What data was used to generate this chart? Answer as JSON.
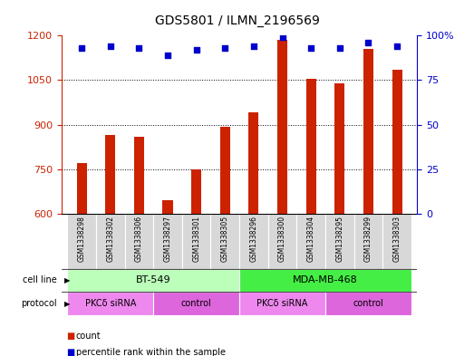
{
  "title": "GDS5801 / ILMN_2196569",
  "samples": [
    "GSM1338298",
    "GSM1338302",
    "GSM1338306",
    "GSM1338297",
    "GSM1338301",
    "GSM1338305",
    "GSM1338296",
    "GSM1338300",
    "GSM1338304",
    "GSM1338295",
    "GSM1338299",
    "GSM1338303"
  ],
  "counts": [
    770,
    865,
    860,
    645,
    748,
    893,
    940,
    1185,
    1053,
    1040,
    1155,
    1085
  ],
  "percentile_ranks": [
    93,
    94,
    93,
    89,
    92,
    93,
    94,
    99,
    93,
    93,
    96,
    94
  ],
  "ylim_left": [
    600,
    1200
  ],
  "ylim_right": [
    0,
    100
  ],
  "yticks_left": [
    600,
    750,
    900,
    1050,
    1200
  ],
  "yticks_right": [
    0,
    25,
    50,
    75,
    100
  ],
  "bar_color": "#cc2200",
  "dot_color": "#0000cc",
  "cell_line_labels": [
    "BT-549",
    "MDA-MB-468"
  ],
  "cell_line_ranges": [
    [
      0,
      6
    ],
    [
      6,
      12
    ]
  ],
  "cell_line_colors": [
    "#bbffbb",
    "#44ee44"
  ],
  "protocol_labels": [
    "PKCδ siRNA",
    "control",
    "PKCδ siRNA",
    "control"
  ],
  "protocol_ranges": [
    [
      0,
      3
    ],
    [
      3,
      6
    ],
    [
      6,
      9
    ],
    [
      9,
      12
    ]
  ],
  "protocol_colors": [
    "#ee88ee",
    "#dd66dd",
    "#ee88ee",
    "#dd66dd"
  ],
  "legend_count_label": "count",
  "legend_percentile_label": "percentile rank within the sample"
}
